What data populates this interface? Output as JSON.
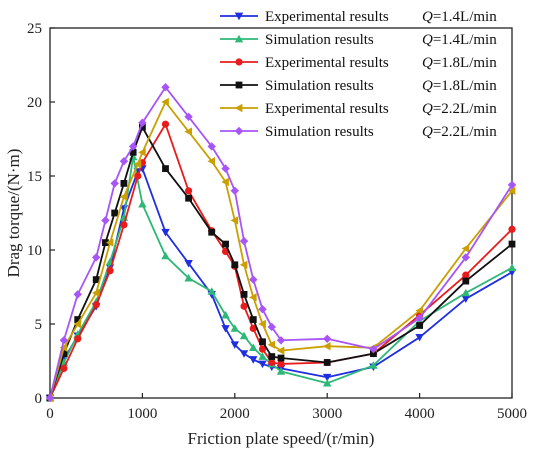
{
  "chart_data": {
    "type": "line",
    "xlabel": "Friction plate speed/(r/min)",
    "ylabel": "Drag torque/(N·m)",
    "xlim": [
      0,
      5000
    ],
    "ylim": [
      0,
      25
    ],
    "xticks": [
      0,
      1000,
      2000,
      3000,
      4000,
      5000
    ],
    "yticks": [
      0,
      5,
      10,
      15,
      20,
      25
    ],
    "grid": false,
    "legend_position": "top-right",
    "series": [
      {
        "name": "Experimental results",
        "q_label": "Q=1.4L/min",
        "color": "#1f2ee0",
        "marker": "triangle-down",
        "x": [
          0,
          150,
          300,
          500,
          650,
          800,
          950,
          1000,
          1250,
          1500,
          1750,
          1900,
          2000,
          2100,
          2200,
          2300,
          2400,
          2500,
          3000,
          3500,
          4000,
          4500,
          5000
        ],
        "y": [
          0,
          2.6,
          4.2,
          6.2,
          8.8,
          12.8,
          15.3,
          15.5,
          11.2,
          9.1,
          7.0,
          4.7,
          3.6,
          3.0,
          2.6,
          2.3,
          2.1,
          2.0,
          1.4,
          2.1,
          4.1,
          6.7,
          8.5
        ]
      },
      {
        "name": "Simulation results",
        "q_label": "Q=1.4L/min",
        "color": "#2eb877",
        "marker": "triangle-up",
        "x": [
          0,
          150,
          300,
          500,
          650,
          800,
          900,
          1000,
          1250,
          1500,
          1750,
          1900,
          2000,
          2100,
          2200,
          2300,
          2400,
          2500,
          3000,
          3500,
          4000,
          4500,
          5000
        ],
        "y": [
          0,
          2.4,
          4.3,
          6.5,
          9.2,
          12.2,
          16.3,
          13.1,
          9.6,
          8.1,
          7.2,
          5.6,
          4.7,
          4.2,
          3.4,
          2.8,
          2.3,
          1.8,
          1.0,
          2.2,
          5.2,
          7.1,
          8.8
        ]
      },
      {
        "name": "Experimental results",
        "q_label": "Q=1.8L/min",
        "color": "#e81c1c",
        "marker": "circle",
        "x": [
          0,
          150,
          300,
          500,
          650,
          800,
          950,
          1000,
          1250,
          1500,
          1750,
          1900,
          2000,
          2100,
          2200,
          2300,
          2400,
          2500,
          3000,
          3500,
          4000,
          4500,
          5000
        ],
        "y": [
          0,
          2.0,
          4.0,
          6.3,
          8.6,
          11.7,
          15.0,
          15.9,
          18.5,
          14.0,
          11.3,
          9.9,
          8.9,
          6.2,
          4.7,
          3.3,
          2.4,
          2.3,
          2.4,
          3.0,
          5.6,
          8.3,
          11.4
        ]
      },
      {
        "name": "Simulation results",
        "q_label": "Q=1.8L/min",
        "color": "#111111",
        "marker": "square",
        "x": [
          0,
          150,
          300,
          500,
          600,
          700,
          800,
          900,
          1000,
          1250,
          1500,
          1750,
          1900,
          2000,
          2100,
          2200,
          2300,
          2400,
          2500,
          3000,
          3500,
          4000,
          4500,
          5000
        ],
        "y": [
          0,
          3.0,
          5.3,
          8.0,
          10.5,
          12.5,
          14.5,
          16.6,
          18.3,
          15.5,
          13.5,
          11.2,
          10.4,
          9.0,
          7.0,
          5.3,
          3.8,
          2.8,
          2.7,
          2.4,
          3.0,
          4.9,
          7.9,
          10.4
        ]
      },
      {
        "name": "Experimental results",
        "q_label": "Q=2.2L/min",
        "color": "#c9a000",
        "marker": "triangle-left",
        "x": [
          0,
          150,
          300,
          500,
          650,
          800,
          950,
          1000,
          1250,
          1500,
          1750,
          1900,
          2000,
          2100,
          2200,
          2300,
          2400,
          2500,
          3000,
          3500,
          4000,
          4500,
          5000
        ],
        "y": [
          0,
          3.4,
          5.0,
          7.1,
          10.5,
          13.6,
          15.8,
          16.6,
          20.0,
          18.0,
          16.0,
          14.6,
          12.0,
          9.0,
          6.8,
          5.0,
          3.6,
          3.2,
          3.5,
          3.4,
          5.9,
          10.1,
          14.0
        ]
      },
      {
        "name": "Simulation results",
        "q_label": "Q=2.2L/min",
        "color": "#a855f7",
        "marker": "diamond",
        "x": [
          0,
          150,
          300,
          500,
          600,
          700,
          800,
          900,
          1000,
          1250,
          1500,
          1750,
          1900,
          2000,
          2100,
          2200,
          2300,
          2400,
          2500,
          3000,
          3500,
          4000,
          4500,
          5000
        ],
        "y": [
          0,
          3.9,
          7.0,
          9.5,
          12.0,
          14.5,
          16.0,
          17.0,
          18.6,
          21.0,
          19.0,
          17.0,
          15.5,
          14.0,
          10.6,
          8.0,
          6.0,
          4.8,
          3.9,
          4.0,
          3.3,
          5.4,
          9.5,
          14.4
        ]
      }
    ]
  }
}
